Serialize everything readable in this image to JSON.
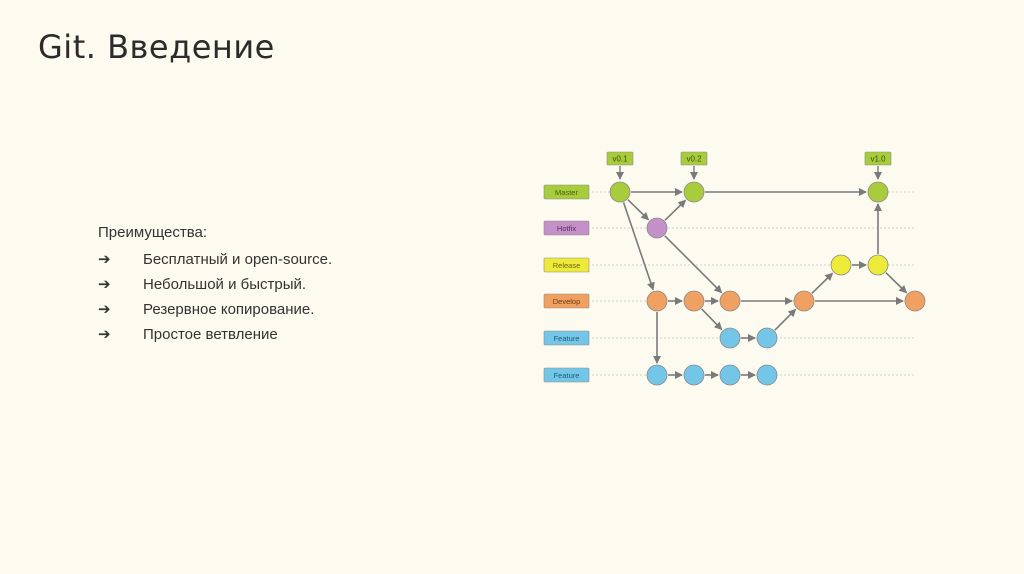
{
  "title": "Git. Введение",
  "advantages": {
    "heading": "Преимущества:",
    "bullet_glyph": "➔",
    "items": [
      "Бесплатный и open-source.",
      "Небольшой и быстрый.",
      "Резервное копирование.",
      "Простое ветвление"
    ]
  },
  "diagram": {
    "branches": [
      {
        "id": "master",
        "label": "Master",
        "color": "#a8cc3c",
        "text_color": "#4a5d12"
      },
      {
        "id": "hotfix",
        "label": "Hotfix",
        "color": "#c490c8",
        "text_color": "#5a2f5e"
      },
      {
        "id": "release",
        "label": "Release",
        "color": "#eeea3a",
        "text_color": "#6b6810"
      },
      {
        "id": "develop",
        "label": "Develop",
        "color": "#f0a061",
        "text_color": "#6d3a10"
      },
      {
        "id": "feature1",
        "label": "Feature",
        "color": "#74c6e8",
        "text_color": "#1e5a78"
      },
      {
        "id": "feature2",
        "label": "Feature",
        "color": "#74c6e8",
        "text_color": "#1e5a78"
      }
    ],
    "tags": [
      "v0.1",
      "v0.2",
      "v1.0"
    ],
    "tag_color": "#a8cc3c"
  }
}
